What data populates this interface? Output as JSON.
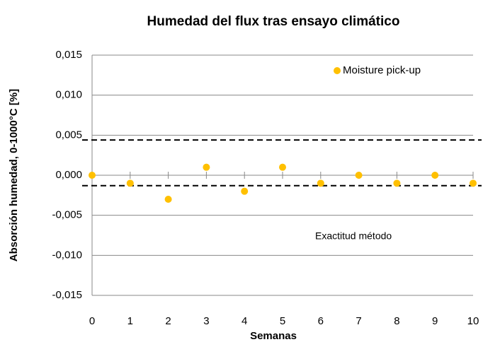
{
  "chart_data": {
    "type": "scatter",
    "title": "Humedad del flux tras ensayo climático",
    "xlabel": "Semanas",
    "ylabel": "Absorción humedad, 0-1000°C   [%]",
    "series": [
      {
        "name": "Moisture pick-up",
        "color": "#ffc000",
        "x": [
          0,
          1,
          2,
          3,
          4,
          5,
          6,
          7,
          8,
          9,
          10
        ],
        "values": [
          0,
          -0.001,
          -0.003,
          0.001,
          -0.002,
          0.001,
          -0.001,
          0,
          -0.001,
          0,
          -0.001
        ]
      }
    ],
    "xlim": [
      0,
      10
    ],
    "xticks": [
      0,
      1,
      2,
      3,
      4,
      5,
      6,
      7,
      8,
      9,
      10
    ],
    "ylim": [
      -0.015,
      0.015
    ],
    "yticks": [
      {
        "value": -0.015,
        "label": "-0,015"
      },
      {
        "value": -0.01,
        "label": "-0,010"
      },
      {
        "value": -0.005,
        "label": "-0,005"
      },
      {
        "value": 0,
        "label": "0,000"
      },
      {
        "value": 0.005,
        "label": "0,005"
      },
      {
        "value": 0.01,
        "label": "0,010"
      },
      {
        "value": 0.015,
        "label": "0,015"
      }
    ],
    "reference_lines": [
      0.0044,
      -0.0013
    ],
    "annotation": "Exactitud método",
    "grid": true,
    "legend": "upper right"
  }
}
